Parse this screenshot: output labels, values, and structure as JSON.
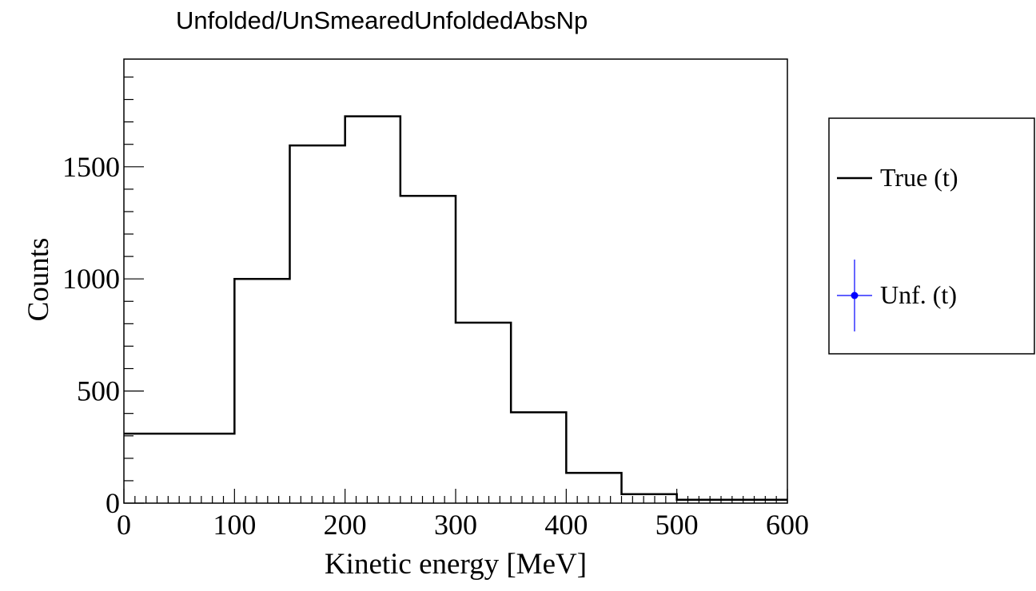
{
  "chart_data": {
    "type": "step-histogram",
    "title": "Unfolded/UnSmearedUnfoldedAbsNp",
    "xlabel": "Kinetic energy [MeV]",
    "ylabel": "Counts",
    "xlim": [
      0,
      600
    ],
    "ylim": [
      0,
      1980
    ],
    "x_ticks": [
      0,
      100,
      200,
      300,
      400,
      500,
      600
    ],
    "y_ticks": [
      0,
      500,
      1000,
      1500
    ],
    "bin_edges": [
      0,
      100,
      150,
      200,
      250,
      300,
      350,
      400,
      450,
      500,
      600
    ],
    "series": [
      {
        "name": "True (t)",
        "style": "line",
        "color": "#000000",
        "values": [
          310,
          1000,
          1595,
          1725,
          1370,
          805,
          405,
          135,
          40,
          15
        ]
      },
      {
        "name": "Unf. (t)",
        "style": "marker-with-errorbars",
        "color": "#0000ff",
        "values": []
      }
    ],
    "legend": {
      "placement": "right-outside",
      "entries": [
        "True (t)",
        "Unf. (t)"
      ]
    },
    "grid": false
  }
}
